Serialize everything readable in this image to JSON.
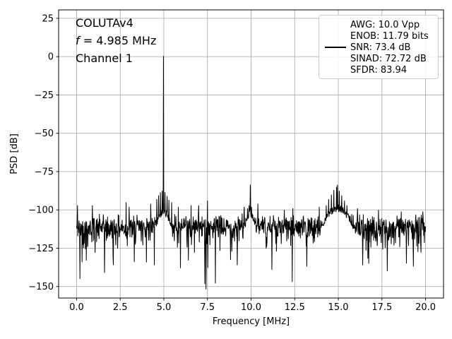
{
  "chart_data": {
    "type": "line",
    "title": "",
    "xlabel": "Frequency [MHz]",
    "ylabel": "PSD [dB]",
    "xlim": [
      -1.03,
      21.03
    ],
    "ylim": [
      -157.5,
      30.5
    ],
    "grid": true,
    "legend_position": "upper-right",
    "line_color": "#000000",
    "grid_color": "#b0b0b0",
    "xticks": [
      0.0,
      2.5,
      5.0,
      7.5,
      10.0,
      12.5,
      15.0,
      17.5,
      20.0
    ],
    "xtick_labels": [
      "0.0",
      "2.5",
      "5.0",
      "7.5",
      "10.0",
      "12.5",
      "15.0",
      "17.5",
      "20.0"
    ],
    "yticks": [
      25,
      0,
      -25,
      -50,
      -75,
      -100,
      -125,
      -150
    ],
    "ytick_labels": [
      "25",
      "0",
      "−25",
      "−50",
      "−75",
      "−100",
      "−125",
      "−150"
    ],
    "annotations": {
      "device": "COLUTAv4",
      "freq_symbol": "f",
      "freq_rest": " = 4.985 MHz",
      "channel": "Channel 1"
    },
    "legend": {
      "entries": [
        {
          "label": "AWG: 10.0 Vpp",
          "handle": false
        },
        {
          "label": "ENOB: 11.79 bits",
          "handle": false
        },
        {
          "label": "SNR: 73.4 dB",
          "handle": true
        },
        {
          "label": "SINAD: 72.72 dB",
          "handle": false
        },
        {
          "label": "SFDR: 83.94",
          "handle": false
        }
      ]
    },
    "signal": {
      "fundamental": {
        "f": 4.985,
        "db": 0.4
      },
      "harmonics": [
        {
          "f": 9.95,
          "db": -83.5
        },
        {
          "f": 14.96,
          "db": -83.6
        }
      ]
    },
    "skirts": [
      {
        "f": 4.985,
        "db": -101,
        "sigma": 0.45
      },
      {
        "f": 9.95,
        "db": -102,
        "sigma": 0.35
      },
      {
        "f": 14.96,
        "db": -99,
        "sigma": 0.9
      }
    ],
    "spurs": [
      [
        0.06,
        -97
      ],
      [
        0.9,
        -97
      ],
      [
        2.83,
        -95
      ],
      [
        3.02,
        -98
      ],
      [
        4.25,
        -96
      ],
      [
        4.6,
        -93
      ],
      [
        4.7,
        -90.5
      ],
      [
        4.8,
        -88.5
      ],
      [
        4.9,
        -87.5
      ],
      [
        5.07,
        -88.5
      ],
      [
        5.18,
        -91
      ],
      [
        5.3,
        -93.5
      ],
      [
        5.45,
        -95
      ],
      [
        5.83,
        -98
      ],
      [
        6.56,
        -97
      ],
      [
        7.0,
        -97
      ],
      [
        7.5,
        -94
      ],
      [
        9.6,
        -98
      ],
      [
        9.8,
        -99
      ],
      [
        9.88,
        -97
      ],
      [
        10.02,
        -98
      ],
      [
        10.4,
        -96
      ],
      [
        11.9,
        -100
      ],
      [
        12.4,
        -99
      ],
      [
        13.9,
        -98
      ],
      [
        14.3,
        -97
      ],
      [
        14.45,
        -93
      ],
      [
        14.6,
        -90
      ],
      [
        14.75,
        -87
      ],
      [
        14.9,
        -85
      ],
      [
        15.05,
        -87.5
      ],
      [
        15.2,
        -90.5
      ],
      [
        15.35,
        -94
      ],
      [
        15.5,
        -97
      ],
      [
        16.1,
        -99
      ],
      [
        17.3,
        -100
      ],
      [
        18.6,
        -101
      ],
      [
        19.85,
        -101
      ]
    ],
    "dips": [
      [
        0.2,
        -145
      ],
      [
        0.55,
        -133
      ],
      [
        1.6,
        -141
      ],
      [
        2.1,
        -136
      ],
      [
        3.3,
        -134
      ],
      [
        4.45,
        -136
      ],
      [
        5.95,
        -138
      ],
      [
        6.4,
        -133
      ],
      [
        7.95,
        -148
      ],
      [
        9.2,
        -136
      ],
      [
        11.2,
        -139
      ],
      [
        12.35,
        -147
      ],
      [
        13.2,
        -137
      ],
      [
        16.4,
        -136
      ],
      [
        17.8,
        -140
      ],
      [
        18.9,
        -135
      ],
      [
        19.3,
        -137
      ]
    ],
    "noise": {
      "floor_db": -110,
      "points": 1150,
      "seed": 42,
      "fmin": 0,
      "fmax": 20
    }
  }
}
